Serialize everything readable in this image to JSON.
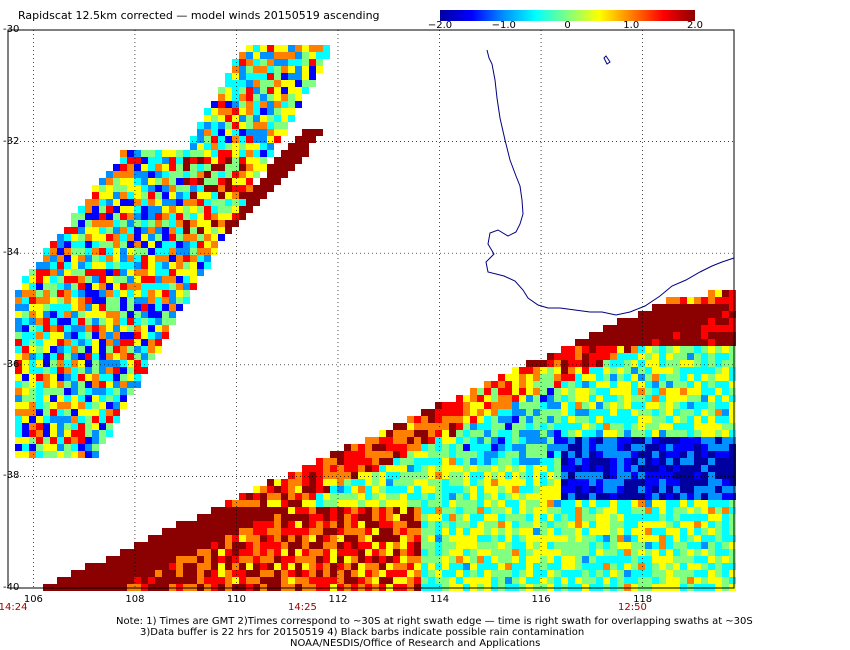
{
  "title": "Rapidscat 12.5km corrected — model winds 20150519 ascending",
  "colorbar": {
    "labels": [
      "−2.0",
      "−1.0",
      "0",
      "1.0",
      "2.0"
    ],
    "values": [
      -2.0,
      -1.0,
      0,
      1.0,
      2.0
    ],
    "stops": [
      "#0000a0",
      "#0000ff",
      "#0090ff",
      "#00ffff",
      "#80ff80",
      "#ffff00",
      "#ff8000",
      "#ff0000",
      "#8b0000"
    ]
  },
  "axes": {
    "lat_labels": [
      "-30",
      "-32",
      "-34",
      "-36",
      "-38",
      "-40"
    ],
    "lat_values": [
      -30,
      -32,
      -34,
      -36,
      -38,
      -40
    ],
    "lon_labels": [
      "106",
      "108",
      "110",
      "112",
      "114",
      "116",
      "118"
    ],
    "lon_values": [
      106,
      108,
      110,
      112,
      114,
      116,
      118
    ],
    "lat_range": [
      -40,
      -30
    ],
    "lon_range": [
      105.5,
      119.8
    ]
  },
  "times": [
    {
      "label": "14:24",
      "lon": 105.6
    },
    {
      "label": "14:25",
      "lon": 111.3
    },
    {
      "label": "12:50",
      "lon": 117.8
    }
  ],
  "notes": {
    "line1": "Note: 1) Times are GMT 2)Times correspond to ~30S at right swath edge — time is right swath for overlapping swaths at ~30S",
    "line2": "3)Data buffer is 22 hrs for 20150519 4) Black barbs indicate possible rain contamination",
    "line3": "NOAA/NESDIS/Office of Research and Applications"
  },
  "colors": {
    "coastline": "#000080",
    "grid": "#000000",
    "time_label": "#a00000"
  }
}
